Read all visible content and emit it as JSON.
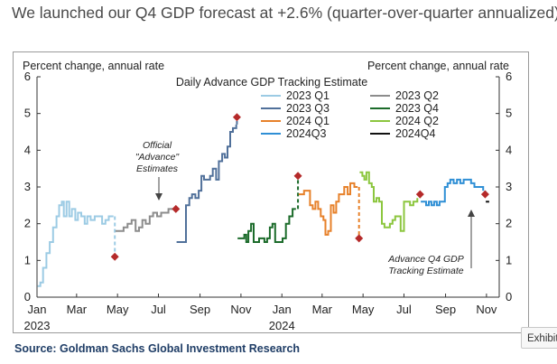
{
  "headline": "We launched our Q4 GDP forecast at +2.6% (quarter-over-quarter annualized):",
  "source": "Source: Goldman Sachs Global Investment Research",
  "exhibit_label": "Exhibit",
  "chart_data": {
    "type": "line",
    "title": "Daily Advance  GDP Tracking Estimate",
    "ylabel_left": "Percent change, annual rate",
    "ylabel_right": "Percent change, annual rate",
    "ylim": [
      0,
      6
    ],
    "yticks": [
      0,
      1,
      2,
      3,
      4,
      5,
      6
    ],
    "xlim": [
      "2023-01-01",
      "2024-11-20"
    ],
    "xticks": [
      {
        "date": "2023-01-01",
        "label": "Jan",
        "year": "2023"
      },
      {
        "date": "2023-03-01",
        "label": "Mar"
      },
      {
        "date": "2023-05-01",
        "label": "May"
      },
      {
        "date": "2023-07-01",
        "label": "Jul"
      },
      {
        "date": "2023-09-01",
        "label": "Sep"
      },
      {
        "date": "2023-11-01",
        "label": "Nov"
      },
      {
        "date": "2024-01-01",
        "label": "Jan",
        "year": "2024"
      },
      {
        "date": "2024-03-01",
        "label": "Mar"
      },
      {
        "date": "2024-05-01",
        "label": "May"
      },
      {
        "date": "2024-07-01",
        "label": "Jul"
      },
      {
        "date": "2024-09-01",
        "label": "Sep"
      },
      {
        "date": "2024-11-01",
        "label": "Nov"
      }
    ],
    "grid": false,
    "legend_position": "top-center",
    "series": [
      {
        "name": "2023 Q1",
        "color": "#9ccbe4",
        "dashed_to": {
          "date": "2023-04-27",
          "value": 1.1
        },
        "points": [
          [
            "2023-01-02",
            0.3
          ],
          [
            "2023-01-06",
            0.4
          ],
          [
            "2023-01-10",
            0.8
          ],
          [
            "2023-01-15",
            1.2
          ],
          [
            "2023-01-20",
            1.5
          ],
          [
            "2023-01-25",
            1.9
          ],
          [
            "2023-01-30",
            2.2
          ],
          [
            "2023-02-03",
            2.5
          ],
          [
            "2023-02-07",
            2.6
          ],
          [
            "2023-02-10",
            2.2
          ],
          [
            "2023-02-14",
            2.6
          ],
          [
            "2023-02-18",
            2.2
          ],
          [
            "2023-02-22",
            2.4
          ],
          [
            "2023-02-27",
            2.1
          ],
          [
            "2023-03-03",
            2.3
          ],
          [
            "2023-03-08",
            2.2
          ],
          [
            "2023-03-13",
            2.0
          ],
          [
            "2023-03-17",
            2.2
          ],
          [
            "2023-03-22",
            2.1
          ],
          [
            "2023-03-28",
            2.2
          ],
          [
            "2023-04-03",
            2.2
          ],
          [
            "2023-04-08",
            2.0
          ],
          [
            "2023-04-13",
            2.1
          ],
          [
            "2023-04-18",
            2.2
          ],
          [
            "2023-04-25",
            2.2
          ]
        ]
      },
      {
        "name": "2023 Q2",
        "color": "#8c8c8c",
        "dashed_to": {
          "date": "2023-07-27",
          "value": 2.4
        },
        "points": [
          [
            "2023-04-28",
            1.8
          ],
          [
            "2023-05-05",
            1.8
          ],
          [
            "2023-05-10",
            1.9
          ],
          [
            "2023-05-16",
            2.0
          ],
          [
            "2023-05-22",
            2.1
          ],
          [
            "2023-05-28",
            1.8
          ],
          [
            "2023-06-02",
            1.9
          ],
          [
            "2023-06-07",
            2.1
          ],
          [
            "2023-06-12",
            2.0
          ],
          [
            "2023-06-18",
            2.2
          ],
          [
            "2023-06-23",
            2.3
          ],
          [
            "2023-06-29",
            2.2
          ],
          [
            "2023-07-05",
            2.3
          ],
          [
            "2023-07-10",
            2.3
          ],
          [
            "2023-07-16",
            2.4
          ],
          [
            "2023-07-20",
            2.4
          ],
          [
            "2023-07-26",
            2.4
          ]
        ]
      },
      {
        "name": "2023 Q3",
        "color": "#50709a",
        "dashed_to": {
          "date": "2023-10-26",
          "value": 4.9
        },
        "points": [
          [
            "2023-07-28",
            1.5
          ],
          [
            "2023-08-02",
            1.5
          ],
          [
            "2023-08-07",
            1.5
          ],
          [
            "2023-08-11",
            2.5
          ],
          [
            "2023-08-16",
            2.7
          ],
          [
            "2023-08-20",
            2.8
          ],
          [
            "2023-08-25",
            2.7
          ],
          [
            "2023-08-30",
            2.9
          ],
          [
            "2023-09-03",
            3.3
          ],
          [
            "2023-09-07",
            3.2
          ],
          [
            "2023-09-12",
            3.2
          ],
          [
            "2023-09-16",
            3.3
          ],
          [
            "2023-09-20",
            3.5
          ],
          [
            "2023-09-25",
            3.2
          ],
          [
            "2023-09-29",
            3.7
          ],
          [
            "2023-10-04",
            3.9
          ],
          [
            "2023-10-08",
            3.8
          ],
          [
            "2023-10-12",
            4.1
          ],
          [
            "2023-10-16",
            4.5
          ],
          [
            "2023-10-20",
            4.6
          ],
          [
            "2023-10-25",
            4.7
          ]
        ]
      },
      {
        "name": "2023 Q4",
        "color": "#1b6b2a",
        "dashed_to": {
          "date": "2024-01-25",
          "value": 3.3
        },
        "points": [
          [
            "2023-10-27",
            1.6
          ],
          [
            "2023-11-01",
            1.6
          ],
          [
            "2023-11-06",
            1.7
          ],
          [
            "2023-11-09",
            1.5
          ],
          [
            "2023-11-12",
            1.8
          ],
          [
            "2023-11-16",
            2.0
          ],
          [
            "2023-11-20",
            1.5
          ],
          [
            "2023-11-24",
            1.5
          ],
          [
            "2023-11-28",
            1.6
          ],
          [
            "2023-12-02",
            1.6
          ],
          [
            "2023-12-06",
            1.5
          ],
          [
            "2023-12-10",
            1.6
          ],
          [
            "2023-12-14",
            1.9
          ],
          [
            "2023-12-18",
            2.0
          ],
          [
            "2023-12-22",
            1.5
          ],
          [
            "2023-12-27",
            1.5
          ],
          [
            "2024-01-02",
            1.6
          ],
          [
            "2024-01-07",
            2.0
          ],
          [
            "2024-01-12",
            2.2
          ],
          [
            "2024-01-17",
            2.4
          ],
          [
            "2024-01-22",
            2.4
          ]
        ]
      },
      {
        "name": "2024 Q1",
        "color": "#e7812a",
        "dashed_to": {
          "date": "2024-04-25",
          "value": 1.6
        },
        "points": [
          [
            "2024-01-26",
            2.8
          ],
          [
            "2024-01-30",
            2.8
          ],
          [
            "2024-02-03",
            2.9
          ],
          [
            "2024-02-08",
            2.9
          ],
          [
            "2024-02-12",
            2.5
          ],
          [
            "2024-02-16",
            2.4
          ],
          [
            "2024-02-20",
            2.6
          ],
          [
            "2024-02-24",
            2.4
          ],
          [
            "2024-02-28",
            2.2
          ],
          [
            "2024-03-03",
            2.1
          ],
          [
            "2024-03-06",
            1.7
          ],
          [
            "2024-03-10",
            1.8
          ],
          [
            "2024-03-14",
            2.5
          ],
          [
            "2024-03-18",
            2.3
          ],
          [
            "2024-03-22",
            2.6
          ],
          [
            "2024-03-26",
            2.8
          ],
          [
            "2024-03-30",
            2.8
          ],
          [
            "2024-04-03",
            3.0
          ],
          [
            "2024-04-08",
            2.8
          ],
          [
            "2024-04-12",
            3.1
          ],
          [
            "2024-04-18",
            3.0
          ],
          [
            "2024-04-23",
            3.0
          ]
        ]
      },
      {
        "name": "2024 Q2",
        "color": "#8cc63e",
        "dashed_to": {
          "date": "2024-07-25",
          "value": 2.8
        },
        "points": [
          [
            "2024-04-26",
            3.4
          ],
          [
            "2024-04-30",
            3.3
          ],
          [
            "2024-05-03",
            3.2
          ],
          [
            "2024-05-06",
            3.4
          ],
          [
            "2024-05-10",
            3.1
          ],
          [
            "2024-05-14",
            3.0
          ],
          [
            "2024-05-17",
            2.6
          ],
          [
            "2024-05-21",
            2.7
          ],
          [
            "2024-05-25",
            2.6
          ],
          [
            "2024-05-29",
            2.0
          ],
          [
            "2024-06-02",
            1.9
          ],
          [
            "2024-06-06",
            1.9
          ],
          [
            "2024-06-10",
            2.0
          ],
          [
            "2024-06-14",
            2.1
          ],
          [
            "2024-06-18",
            2.2
          ],
          [
            "2024-06-22",
            2.2
          ],
          [
            "2024-06-26",
            1.8
          ],
          [
            "2024-07-01",
            2.6
          ],
          [
            "2024-07-05",
            2.6
          ],
          [
            "2024-07-10",
            2.5
          ],
          [
            "2024-07-15",
            2.6
          ],
          [
            "2024-07-21",
            2.7
          ]
        ]
      },
      {
        "name": "2024Q3",
        "color": "#2f8fd5",
        "dashed_to": {
          "date": "2024-10-30",
          "value": 2.8
        },
        "points": [
          [
            "2024-07-26",
            2.6
          ],
          [
            "2024-07-30",
            2.6
          ],
          [
            "2024-08-03",
            2.5
          ],
          [
            "2024-08-07",
            2.6
          ],
          [
            "2024-08-11",
            2.5
          ],
          [
            "2024-08-15",
            2.6
          ],
          [
            "2024-08-19",
            2.5
          ],
          [
            "2024-08-23",
            2.6
          ],
          [
            "2024-08-27",
            2.6
          ],
          [
            "2024-08-31",
            3.0
          ],
          [
            "2024-09-04",
            3.1
          ],
          [
            "2024-09-08",
            3.2
          ],
          [
            "2024-09-13",
            3.1
          ],
          [
            "2024-09-18",
            3.2
          ],
          [
            "2024-09-23",
            3.1
          ],
          [
            "2024-09-28",
            3.2
          ],
          [
            "2024-10-04",
            3.2
          ],
          [
            "2024-10-09",
            3.1
          ],
          [
            "2024-10-14",
            3.0
          ],
          [
            "2024-10-20",
            3.0
          ],
          [
            "2024-10-27",
            2.9
          ]
        ]
      },
      {
        "name": "2024Q4",
        "color": "#111111",
        "points": [
          [
            "2024-10-31",
            2.6
          ],
          [
            "2024-11-05",
            2.6
          ]
        ]
      }
    ],
    "advance_estimates": [
      {
        "date": "2023-04-27",
        "value": 1.1
      },
      {
        "date": "2023-07-27",
        "value": 2.4
      },
      {
        "date": "2023-10-26",
        "value": 4.9
      },
      {
        "date": "2024-01-25",
        "value": 3.3
      },
      {
        "date": "2024-04-25",
        "value": 1.6
      },
      {
        "date": "2024-07-25",
        "value": 2.8
      },
      {
        "date": "2024-10-30",
        "value": 2.8
      }
    ],
    "annotations": [
      {
        "lines": [
          "Official",
          "\"Advance\"",
          "Estimates"
        ]
      },
      {
        "lines": [
          "Advance Q4 GDP",
          "Tracking Estimate"
        ]
      }
    ]
  }
}
